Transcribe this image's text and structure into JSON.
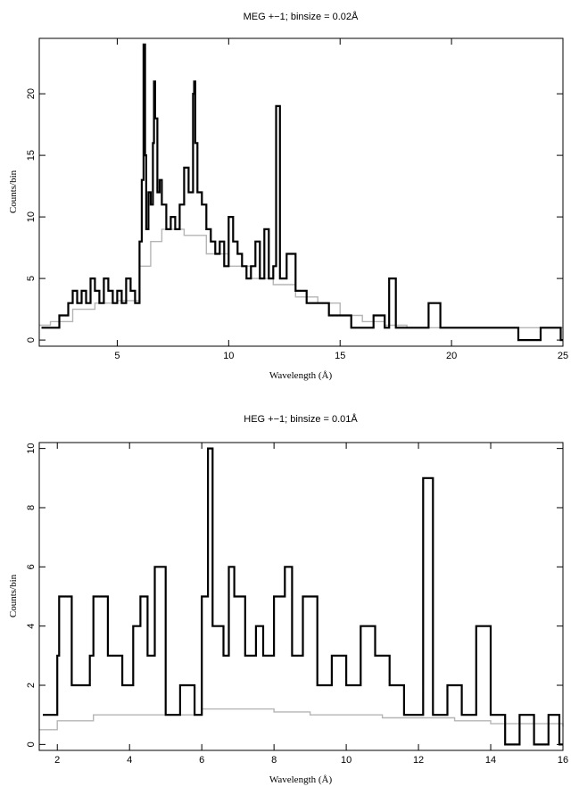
{
  "chart_data": [
    {
      "type": "line",
      "title": "MEG +−1; binsize = 0.02Å",
      "xlabel": "Wavelength (Å)",
      "ylabel": "Counts/bin",
      "xlim": [
        1.5,
        25
      ],
      "ylim": [
        -0.5,
        24.5
      ],
      "xticks": [
        5,
        10,
        15,
        20,
        25
      ],
      "yticks": [
        0,
        5,
        10,
        15,
        20
      ],
      "grid": false,
      "series": [
        {
          "role": "observed counts (thick black)",
          "x": [
            1.6,
            2.0,
            2.4,
            2.8,
            3.0,
            3.2,
            3.4,
            3.6,
            3.8,
            4.0,
            4.2,
            4.4,
            4.6,
            4.8,
            5.0,
            5.2,
            5.4,
            5.6,
            5.8,
            6.0,
            6.1,
            6.18,
            6.25,
            6.3,
            6.4,
            6.5,
            6.6,
            6.65,
            6.7,
            6.8,
            6.9,
            7.0,
            7.2,
            7.4,
            7.6,
            7.8,
            8.0,
            8.2,
            8.4,
            8.45,
            8.5,
            8.6,
            8.8,
            9.0,
            9.2,
            9.4,
            9.6,
            9.8,
            10.0,
            10.2,
            10.4,
            10.6,
            10.8,
            11.0,
            11.2,
            11.4,
            11.6,
            11.8,
            12.0,
            12.13,
            12.3,
            12.6,
            13.0,
            13.5,
            14.0,
            14.5,
            15.0,
            15.5,
            16.0,
            16.5,
            17.0,
            17.2,
            17.5,
            18.0,
            18.5,
            18.97,
            19.5,
            20.0,
            21.0,
            22.0,
            23.0,
            24.0,
            24.9
          ],
          "y": [
            1,
            1,
            2,
            3,
            4,
            3,
            4,
            3,
            5,
            4,
            3,
            5,
            4,
            3,
            4,
            3,
            5,
            4,
            3,
            8,
            13,
            24,
            15,
            9,
            12,
            11,
            16,
            21,
            18,
            12,
            13,
            11,
            9,
            10,
            9,
            11,
            14,
            12,
            20,
            21,
            16,
            12,
            11,
            9,
            8,
            7,
            8,
            6,
            10,
            8,
            7,
            6,
            5,
            6,
            8,
            5,
            9,
            5,
            6,
            19,
            5,
            7,
            4,
            3,
            3,
            2,
            2,
            1,
            1,
            2,
            1,
            5,
            1,
            1,
            1,
            3,
            1,
            1,
            1,
            1,
            0,
            1,
            0
          ]
        },
        {
          "role": "model / background (gray)",
          "x": [
            1.5,
            2.0,
            3.0,
            4.0,
            5.0,
            6.0,
            6.5,
            7.0,
            8.0,
            9.0,
            10.0,
            11.0,
            12.0,
            13.0,
            14.0,
            15.0,
            16.0,
            17.0,
            18.0,
            19.0,
            20.0,
            22.0,
            25.0
          ],
          "y": [
            1.2,
            1.5,
            2.5,
            3,
            3.2,
            6,
            8,
            9,
            8.5,
            7,
            6,
            5,
            4.5,
            3.5,
            3,
            2,
            1.5,
            1.2,
            1,
            1,
            1,
            1,
            1
          ]
        }
      ]
    },
    {
      "type": "line",
      "title": "HEG +−1; binsize = 0.01Å",
      "xlabel": "Wavelength (Å)",
      "ylabel": "Counts/bin",
      "xlim": [
        1.5,
        16
      ],
      "ylim": [
        -0.2,
        10.2
      ],
      "xticks": [
        2,
        4,
        6,
        8,
        10,
        12,
        14,
        16
      ],
      "yticks": [
        0,
        2,
        4,
        6,
        8,
        10
      ],
      "grid": false,
      "series": [
        {
          "role": "observed counts (thick black)",
          "x": [
            1.6,
            2.0,
            2.05,
            2.4,
            2.9,
            3.0,
            3.4,
            3.8,
            4.1,
            4.3,
            4.5,
            4.7,
            5.0,
            5.4,
            5.8,
            6.0,
            6.17,
            6.3,
            6.6,
            6.75,
            6.9,
            7.2,
            7.5,
            7.7,
            8.0,
            8.3,
            8.5,
            8.8,
            9.2,
            9.6,
            10.0,
            10.4,
            10.8,
            11.2,
            11.6,
            12.13,
            12.4,
            12.8,
            13.2,
            13.6,
            14.0,
            14.4,
            14.8,
            15.2,
            15.6,
            15.9
          ],
          "y": [
            1,
            3,
            5,
            2,
            3,
            5,
            3,
            2,
            4,
            5,
            3,
            6,
            1,
            2,
            1,
            5,
            10,
            4,
            3,
            6,
            5,
            3,
            4,
            3,
            5,
            6,
            3,
            5,
            2,
            3,
            2,
            4,
            3,
            2,
            1,
            9,
            1,
            2,
            1,
            4,
            1,
            0,
            1,
            0,
            1,
            0
          ]
        },
        {
          "role": "model / background (gray)",
          "x": [
            1.5,
            2.0,
            3.0,
            4.0,
            5.0,
            6.0,
            7.0,
            8.0,
            9.0,
            10.0,
            11.0,
            12.0,
            13.0,
            14.0,
            15.0,
            16.0
          ],
          "y": [
            0.5,
            0.8,
            1,
            1,
            1,
            1.2,
            1.2,
            1.1,
            1,
            1,
            0.9,
            0.9,
            0.8,
            0.7,
            0.7,
            0.6
          ]
        }
      ]
    }
  ]
}
